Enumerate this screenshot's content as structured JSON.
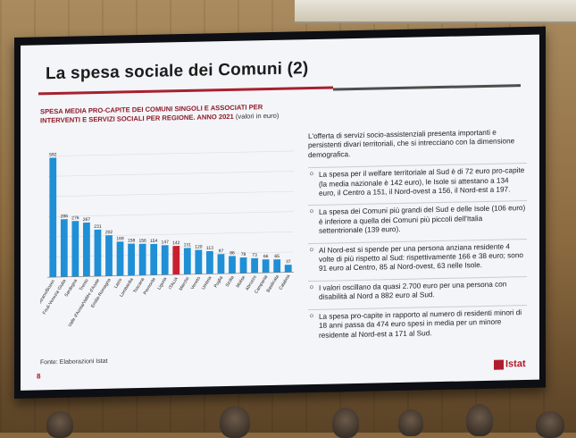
{
  "slide": {
    "title": "La spesa sociale dei Comuni (2)",
    "chart_title": "SPESA MEDIA PRO-CAPITE DEI COMUNI SINGOLI E ASSOCIATI PER INTERVENTI E SERVIZI SOCIALI PER REGIONE. ANNO 2021",
    "chart_unit": "(valori in euro)",
    "source": "Fonte: Elaborazioni Istat",
    "page_number": "8",
    "logo_text": "Istat",
    "intro": "L'offerta di servizi socio-assistenziali presenta importanti e persistenti divari territoriali, che si intrecciano con la dimensione demografica.",
    "bullets": [
      "La spesa per il welfare territoriale al Sud è di 72 euro pro-capite (la media nazionale è 142 euro), le Isole si attestano a 134 euro, il Centro a 151, il Nord-ovest a 156, il Nord-est a 197.",
      "La spesa dei Comuni più grandi del Sud e delle Isole (106 euro) è inferiore a quella dei Comuni più piccoli dell'Italia settentrionale (139 euro).",
      "Al Nord-est si spende per una persona anziana residente 4 volte di più rispetto al Sud: rispettivamente 166 e 38 euro; sono 91 euro al Centro, 85 al Nord-ovest, 63 nelle Isole.",
      "I valori oscillano da quasi 2.700 euro per una persona con disabilità al Nord a 882 euro al Sud.",
      "La spesa pro-capite in rapporto al numero di residenti minori di 18 anni passa da 474 euro spesi in media per un minore residente al Nord-est a 171 al Sud."
    ]
  },
  "colors": {
    "bar": "#1f8fd6",
    "bar_highlight": "#c8202f",
    "accent_red": "#a8202f"
  },
  "chart_data": {
    "type": "bar",
    "categories": [
      "Bolzano/Bozen",
      "Friuli-Venezia Giulia",
      "Sardegna",
      "Trento",
      "Valle d'Aosta/Vallée d'Aoste",
      "Emilia-Romagna",
      "Lazio",
      "Lombardia",
      "Toscana",
      "Piemonte",
      "Liguria",
      "ITALIA",
      "Marche",
      "Veneto",
      "Umbria",
      "Puglia",
      "Sicilia",
      "Molise",
      "Abruzzo",
      "Campania",
      "Basilicata",
      "Calabria"
    ],
    "values": [
      592,
      286,
      276,
      267,
      231,
      202,
      169,
      158,
      156,
      154,
      147,
      142,
      131,
      120,
      113,
      97,
      86,
      78,
      73,
      66,
      65,
      37
    ],
    "highlight": "ITALIA",
    "ylim": [
      0,
      620
    ],
    "grid": true,
    "title": "SPESA MEDIA PRO-CAPITE DEI COMUNI SINGOLI E ASSOCIATI PER INTERVENTI E SERVIZI SOCIALI PER REGIONE. ANNO 2021",
    "ylabel": "",
    "xlabel": ""
  }
}
